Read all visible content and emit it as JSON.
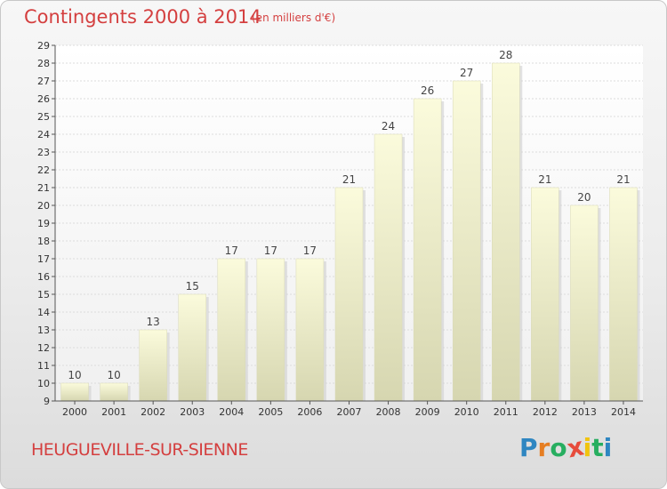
{
  "title": "Contingents 2000 à 2014",
  "subtitle": "(en milliers d'€)",
  "commune": "HEUGUEVILLE-SUR-SIENNE",
  "logo": {
    "text": "Proxiti",
    "letters": [
      "P",
      "r",
      "o",
      "x",
      "i",
      "t",
      "i"
    ],
    "colors": [
      "#2e86c1",
      "#e67e22",
      "#27ae60",
      "#e74c3c",
      "#f1c40f",
      "#27ae60",
      "#2e86c1"
    ]
  },
  "chart_data": {
    "type": "bar",
    "categories": [
      "2000",
      "2001",
      "2002",
      "2003",
      "2004",
      "2005",
      "2006",
      "2007",
      "2008",
      "2009",
      "2010",
      "2011",
      "2012",
      "2013",
      "2014"
    ],
    "values": [
      10,
      10,
      13,
      15,
      17,
      17,
      17,
      21,
      24,
      26,
      27,
      28,
      21,
      20,
      21
    ],
    "ylim": [
      9,
      29
    ],
    "yticks": [
      9,
      10,
      11,
      12,
      13,
      14,
      15,
      16,
      17,
      18,
      19,
      20,
      21,
      22,
      23,
      24,
      25,
      26,
      27,
      28,
      29
    ],
    "title": "Contingents 2000 à 2014",
    "ylabel": "",
    "xlabel": "",
    "grid": "horizontal",
    "bar_color": "#f5f5c8"
  }
}
